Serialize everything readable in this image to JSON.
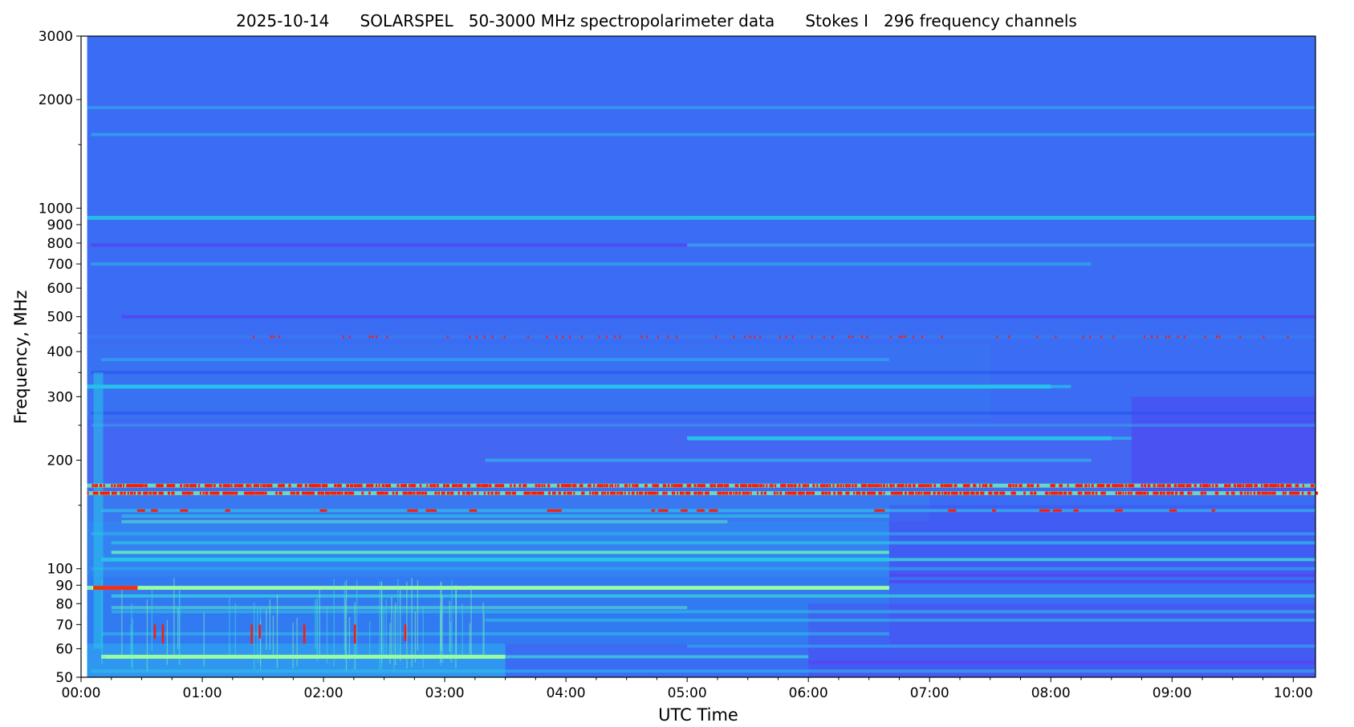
{
  "header": {
    "date": "2025-10-14",
    "instrument": "SOLARSPEL",
    "description": "50-3000 MHz spectropolarimeter data",
    "stokes": "Stokes I",
    "channels": "296 frequency channels"
  },
  "chart_data": {
    "type": "heatmap",
    "title": "2025-10-14      SOLARSPEL   50-3000 MHz spectropolarimeter data      Stokes I   296 frequency channels",
    "xlabel": "UTC Time",
    "ylabel": "Frequency, MHz",
    "x_scale": "time",
    "y_scale": "log",
    "xlim": [
      "00:00",
      "10:11"
    ],
    "ylim": [
      50,
      3000
    ],
    "data_start": "00:03",
    "data_end": "10:11",
    "x_ticks": [
      "00:00",
      "01:00",
      "02:00",
      "03:00",
      "04:00",
      "05:00",
      "06:00",
      "07:00",
      "08:00",
      "09:00",
      "10:00"
    ],
    "y_ticks": [
      50,
      60,
      70,
      80,
      90,
      100,
      200,
      300,
      400,
      500,
      600,
      700,
      800,
      900,
      1000,
      2000,
      3000
    ],
    "grid": false,
    "colormap": "rainbow",
    "colors": {
      "background": "#3a6cf4",
      "low": "#5a3cf2",
      "mid": "#26c4e8",
      "high": "#9dfca0",
      "saturated": "#ff1a00"
    },
    "features": [
      {
        "name": "persistent RFI line",
        "freq_mhz": 162,
        "start": "00:03",
        "end": "10:11",
        "level": "saturated"
      },
      {
        "name": "persistent RFI line",
        "freq_mhz": 170,
        "start": "00:03",
        "end": "10:11",
        "level": "saturated"
      },
      {
        "name": "FM broadcast band",
        "freq_mhz": 88.5,
        "start": "00:03",
        "end": "06:40",
        "level": "high"
      },
      {
        "name": "FM band strong segment",
        "freq_mhz": 88.5,
        "start": "00:06",
        "end": "00:28",
        "level": "saturated"
      },
      {
        "name": "band",
        "freq_mhz": 106,
        "start": "00:10",
        "end": "06:40",
        "level": "mid"
      },
      {
        "name": "band",
        "freq_mhz": 57,
        "start": "00:10",
        "end": "03:30",
        "level": "high"
      },
      {
        "name": "band",
        "freq_mhz": 940,
        "start": "00:03",
        "end": "10:11",
        "level": "mid"
      },
      {
        "name": "band",
        "freq_mhz": 320,
        "start": "00:03",
        "end": "08:00",
        "level": "mid"
      },
      {
        "name": "band",
        "freq_mhz": 230,
        "start": "05:00",
        "end": "08:30",
        "level": "mid"
      },
      {
        "name": "intermittent dots",
        "freq_mhz": 440,
        "start": "01:25",
        "end": "10:00",
        "level": "saturated"
      }
    ]
  }
}
